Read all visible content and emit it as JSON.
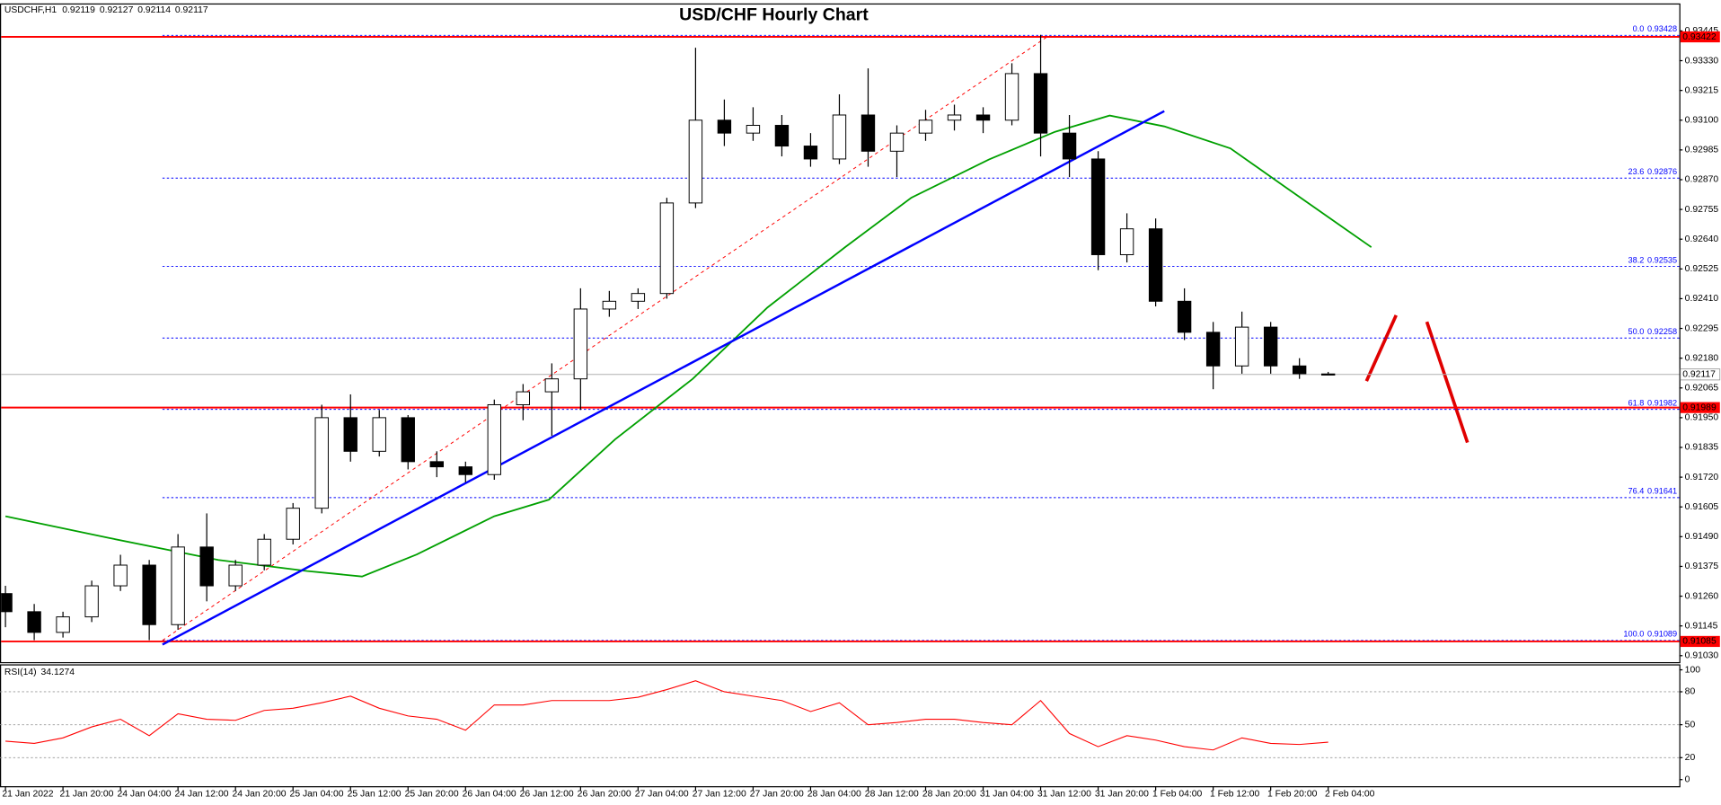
{
  "chart_data": {
    "type": "candlestick",
    "title": "USD/CHF Hourly Chart",
    "symbol": "USDCHF,H1",
    "xlim": [
      -0.19,
      58.21
    ],
    "xticks": [
      {
        "value": 0,
        "label": "21 Jan 2022"
      },
      {
        "value": 2,
        "label": "21 Jan 20:00"
      },
      {
        "value": 4,
        "label": "24 Jan 04:00"
      },
      {
        "value": 6,
        "label": "24 Jan 12:00"
      },
      {
        "value": 8,
        "label": "24 Jan 20:00"
      },
      {
        "value": 10,
        "label": "25 Jan 04:00"
      },
      {
        "value": 12,
        "label": "25 Jan 12:00"
      },
      {
        "value": 14,
        "label": "25 Jan 20:00"
      },
      {
        "value": 16,
        "label": "26 Jan 04:00"
      },
      {
        "value": 18,
        "label": "26 Jan 12:00"
      },
      {
        "value": 20,
        "label": "26 Jan 20:00"
      },
      {
        "value": 22,
        "label": "27 Jan 04:00"
      },
      {
        "value": 24,
        "label": "27 Jan 12:00"
      },
      {
        "value": 26,
        "label": "27 Jan 20:00"
      },
      {
        "value": 28,
        "label": "28 Jan 04:00"
      },
      {
        "value": 30,
        "label": "28 Jan 12:00"
      },
      {
        "value": 32,
        "label": "28 Jan 20:00"
      },
      {
        "value": 34,
        "label": "31 Jan 04:00"
      },
      {
        "value": 36,
        "label": "31 Jan 12:00"
      },
      {
        "value": 38,
        "label": "31 Jan 20:00"
      },
      {
        "value": 40,
        "label": "1 Feb 04:00"
      },
      {
        "value": 42,
        "label": "1 Feb 12:00"
      },
      {
        "value": 44,
        "label": "1 Feb 20:00"
      },
      {
        "value": 46,
        "label": "2 Feb 04:00"
      }
    ],
    "ylim": [
      0.91005,
      0.93547
    ],
    "yticks": [
      {
        "value": 0.9103,
        "label": "0.91030"
      },
      0.91145,
      {
        "value": 0.9126,
        "label": "0.91260"
      },
      0.91375,
      {
        "value": 0.9149,
        "label": "0.91490"
      },
      0.91605,
      {
        "value": 0.9172,
        "label": "0.91720"
      },
      0.91835,
      {
        "value": 0.9195,
        "label": "0.91950"
      },
      0.92065,
      {
        "value": 0.9218,
        "label": "0.92180"
      },
      0.92295,
      {
        "value": 0.9241,
        "label": "0.92410"
      },
      0.92525,
      {
        "value": 0.9264,
        "label": "0.92640"
      },
      0.92755,
      {
        "value": 0.9287,
        "label": "0.92870"
      },
      0.92985,
      {
        "value": 0.931,
        "label": "0.93100"
      },
      0.93215,
      {
        "value": 0.9333,
        "label": "0.93330"
      },
      0.93445
    ],
    "open": [
      0.9127,
      0.912,
      0.9112,
      0.9118,
      0.913,
      0.9138,
      0.9115,
      0.9145,
      0.913,
      0.9138,
      0.9148,
      0.916,
      0.9195,
      0.9182,
      0.9195,
      0.9178,
      0.9176,
      0.9173,
      0.92,
      0.9205,
      0.921,
      0.9237,
      0.924,
      0.9243,
      0.9278,
      0.931,
      0.9305,
      0.9308,
      0.93,
      0.9295,
      0.9312,
      0.9298,
      0.9305,
      0.931,
      0.9312,
      0.931,
      0.9328,
      0.9305,
      0.9295,
      0.9258,
      0.9268,
      0.924,
      0.9228,
      0.9215,
      0.923,
      0.9215,
      0.92119
    ],
    "high": [
      0.913,
      0.9123,
      0.912,
      0.9132,
      0.9142,
      0.914,
      0.915,
      0.9158,
      0.914,
      0.915,
      0.9162,
      0.92,
      0.9204,
      0.9198,
      0.9196,
      0.9182,
      0.9178,
      0.9202,
      0.9208,
      0.9216,
      0.9245,
      0.9244,
      0.9245,
      0.928,
      0.9338,
      0.9318,
      0.9315,
      0.9312,
      0.9305,
      0.932,
      0.933,
      0.9308,
      0.9314,
      0.9316,
      0.9315,
      0.9332,
      0.9343,
      0.9312,
      0.9298,
      0.9274,
      0.9272,
      0.9245,
      0.9232,
      0.9236,
      0.9232,
      0.9218,
      0.92127
    ],
    "low": [
      0.9114,
      0.9109,
      0.911,
      0.9116,
      0.9128,
      0.9109,
      0.9113,
      0.9124,
      0.9128,
      0.9136,
      0.9146,
      0.9158,
      0.9178,
      0.918,
      0.9175,
      0.9172,
      0.917,
      0.9171,
      0.9194,
      0.9188,
      0.9198,
      0.9234,
      0.9237,
      0.9241,
      0.9276,
      0.93,
      0.9302,
      0.9296,
      0.9292,
      0.9293,
      0.9292,
      0.9288,
      0.9302,
      0.9306,
      0.9305,
      0.9308,
      0.9296,
      0.9288,
      0.9252,
      0.9255,
      0.9238,
      0.9225,
      0.9206,
      0.9212,
      0.9212,
      0.921,
      0.92114
    ],
    "close": [
      0.912,
      0.9112,
      0.9118,
      0.913,
      0.9138,
      0.9115,
      0.9145,
      0.913,
      0.9138,
      0.9148,
      0.916,
      0.9195,
      0.9182,
      0.9195,
      0.9178,
      0.9176,
      0.9173,
      0.92,
      0.9205,
      0.921,
      0.9237,
      0.924,
      0.9243,
      0.9278,
      0.931,
      0.9305,
      0.9308,
      0.93,
      0.9295,
      0.9312,
      0.9298,
      0.9305,
      0.931,
      0.9312,
      0.931,
      0.9328,
      0.9305,
      0.9295,
      0.9258,
      0.9268,
      0.924,
      0.9228,
      0.9215,
      0.923,
      0.9215,
      0.9212,
      0.92117
    ],
    "ma": {
      "color": "#00a000",
      "x": [
        0,
        3.6,
        7.4,
        10.5,
        12.4,
        14.3,
        17,
        18.9,
        21.2,
        23.9,
        26.5,
        29.2,
        31.5,
        34.2,
        36.5,
        38.4,
        40.3,
        42.6,
        44.5,
        47.5
      ],
      "values": [
        0.91569,
        0.91485,
        0.914,
        0.91357,
        0.91336,
        0.91421,
        0.91569,
        0.91633,
        0.91866,
        0.921,
        0.92376,
        0.92609,
        0.928,
        0.92948,
        0.93055,
        0.93118,
        0.93076,
        0.92991,
        0.92842,
        0.92609
      ]
    },
    "trendline": {
      "color": "#0000ff",
      "x": [
        5.46,
        40.3
      ],
      "values": [
        0.91073,
        0.93135
      ]
    },
    "fib": {
      "x": [
        5.46,
        36.3
      ],
      "color": "#0000ff",
      "line_color": "#ff0000",
      "levels": [
        {
          "ratio": "0.0",
          "value": 0.93428
        },
        {
          "ratio": "23.6",
          "value": 0.92876
        },
        {
          "ratio": "38.2",
          "value": 0.92535
        },
        {
          "ratio": "50.0",
          "value": 0.92258
        },
        {
          "ratio": "61.8",
          "value": 0.91982
        },
        {
          "ratio": "76.4",
          "value": 0.91641
        },
        {
          "ratio": "100.0",
          "value": 0.91089
        }
      ]
    },
    "hlines": [
      {
        "value": 0.93422,
        "color": "#ff0000"
      },
      {
        "value": 0.91989,
        "color": "#ff0000"
      },
      {
        "value": 0.91085,
        "color": "#ff0000"
      }
    ],
    "rsi": {
      "name": "RSI(14)",
      "color": "#ff0000",
      "ylim": [
        -6,
        105
      ],
      "yticks": [
        100,
        80,
        50,
        20,
        0
      ],
      "levels": [
        80,
        50,
        20
      ],
      "values": [
        35,
        33,
        38,
        48,
        55,
        40,
        60,
        55,
        54,
        63,
        65,
        70,
        76,
        65,
        58,
        55,
        45,
        68,
        68,
        72,
        72,
        72,
        75,
        82,
        90,
        80,
        76,
        72,
        62,
        70,
        50,
        52,
        55,
        55,
        52,
        50,
        72,
        42,
        30,
        40,
        36,
        30,
        27,
        38,
        33,
        32,
        34.1274
      ]
    }
  }
}
